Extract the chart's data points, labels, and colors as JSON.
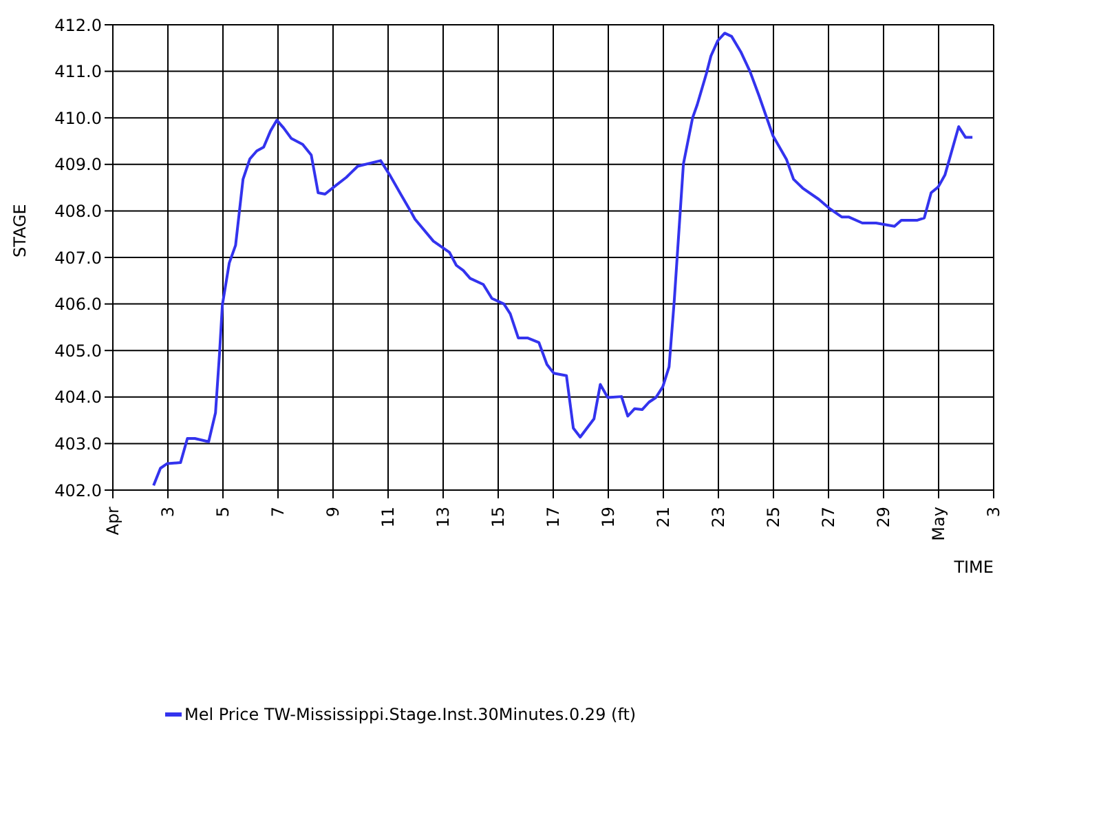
{
  "chart_data": {
    "type": "line",
    "xlabel": "TIME",
    "ylabel": "STAGE",
    "x": [
      "--04-02T11:30",
      "--04-02T17:30",
      "--04-02T23:30",
      "--04-03T11:00",
      "--04-03T17:00",
      "--04-03T23:30",
      "--04-04T11:30",
      "--04-04T17:30",
      "--04-04T21:00",
      "--04-04T23:30",
      "--04-05T05:30",
      "--04-05T11:00",
      "--04-05T17:30",
      "--04-05T23:30",
      "--04-06T05:30",
      "--04-06T11:30",
      "--04-06T17:30",
      "--04-06T23:00",
      "--04-07T05:00",
      "--04-07T11:30",
      "--04-07T21:30",
      "--04-08T05:00",
      "--04-08T11:00",
      "--04-08T17:00",
      "--04-09T01:30",
      "--04-09T11:30",
      "--04-09T21:30",
      "--04-10T17:30",
      "--04-11T01:30",
      "--04-11T11:30",
      "--04-11T19:30",
      "--04-11T23:30",
      "--04-12T15:30",
      "--04-13T05:30",
      "--04-13T11:30",
      "--04-13T17:30",
      "--04-13T23:30",
      "--04-14T11:00",
      "--04-14T18:30",
      "--04-15T05:00",
      "--04-15T10:30",
      "--04-15T17:30",
      "--04-16T01:30",
      "--04-16T11:30",
      "--04-16T18:30",
      "--04-17T00:30",
      "--04-17T11:30",
      "--04-17T17:30",
      "--04-17T23:30",
      "--04-18T11:30",
      "--04-18T17:00",
      "--04-18T23:30",
      "--04-19T11:30",
      "--04-19T17:00",
      "--04-19T23:00",
      "--04-20T05:30",
      "--04-20T11:30",
      "--04-20T17:30",
      "--04-20T23:30",
      "--04-21T05:00",
      "--04-21T09:30",
      "--04-21T17:30",
      "--04-22T01:30",
      "--04-22T05:30",
      "--04-22T13:30",
      "--04-22T17:30",
      "--04-22T23:30",
      "--04-23T05:30",
      "--04-23T11:30",
      "--04-23T19:30",
      "--04-24T03:30",
      "--04-24T11:30",
      "--04-24T23:30",
      "--04-25T11:30",
      "--04-25T17:30",
      "--04-26T01:30",
      "--04-26T15:30",
      "--04-27T01:30",
      "--04-27T11:30",
      "--04-27T17:30",
      "--04-28T05:30",
      "--04-28T17:30",
      "--04-29T09:30",
      "--04-29T15:30",
      "--04-30T05:30",
      "--04-30T11:30",
      "--04-30T17:30",
      "--04-30T23:30",
      "--05-01T05:30",
      "--05-01T17:30",
      "--05-01T23:30",
      "--05-02T05:30"
    ],
    "series": [
      {
        "name": "Mel Price TW-Mississippi.Stage.Inst.30Minutes.0.29 (ft)",
        "color": "#3333ee",
        "values": [
          402.1,
          402.47,
          402.57,
          402.59,
          403.11,
          403.11,
          403.04,
          403.66,
          404.93,
          405.98,
          406.88,
          407.26,
          408.68,
          409.12,
          409.29,
          409.37,
          409.72,
          409.95,
          409.78,
          409.56,
          409.43,
          409.2,
          408.39,
          408.36,
          408.53,
          408.72,
          408.96,
          409.08,
          408.77,
          408.34,
          408.0,
          407.82,
          407.35,
          407.11,
          406.83,
          406.72,
          406.55,
          406.42,
          406.12,
          406.0,
          405.79,
          405.27,
          405.27,
          405.17,
          404.7,
          404.51,
          404.46,
          403.33,
          403.14,
          403.53,
          404.27,
          403.99,
          404.01,
          403.59,
          403.75,
          403.73,
          403.89,
          403.99,
          404.22,
          404.65,
          406.07,
          409.01,
          410.0,
          410.28,
          410.95,
          411.33,
          411.66,
          411.82,
          411.75,
          411.42,
          411.0,
          410.47,
          409.62,
          409.1,
          408.68,
          408.49,
          408.25,
          408.04,
          407.87,
          407.87,
          407.74,
          407.74,
          407.67,
          407.8,
          407.8,
          407.85,
          408.39,
          408.51,
          408.77,
          409.81,
          409.58,
          409.58
        ]
      }
    ],
    "xlim": [
      "--04-01",
      "--05-03"
    ],
    "xticks": [
      {
        "value": "--04-01",
        "label": "Apr"
      },
      {
        "value": "--04-03",
        "label": "3"
      },
      {
        "value": "--04-05",
        "label": "5"
      },
      {
        "value": "--04-07",
        "label": "7"
      },
      {
        "value": "--04-09",
        "label": "9"
      },
      {
        "value": "--04-11",
        "label": "11"
      },
      {
        "value": "--04-13",
        "label": "13"
      },
      {
        "value": "--04-15",
        "label": "15"
      },
      {
        "value": "--04-17",
        "label": "17"
      },
      {
        "value": "--04-19",
        "label": "19"
      },
      {
        "value": "--04-21",
        "label": "21"
      },
      {
        "value": "--04-23",
        "label": "23"
      },
      {
        "value": "--04-25",
        "label": "25"
      },
      {
        "value": "--04-27",
        "label": "27"
      },
      {
        "value": "--04-29",
        "label": "29"
      },
      {
        "value": "--05-01",
        "label": "May"
      },
      {
        "value": "--05-03",
        "label": "3"
      }
    ],
    "ylim": [
      402,
      412
    ],
    "yticks": [
      {
        "value": 402,
        "label": "402.0"
      },
      {
        "value": 403,
        "label": "403.0"
      },
      {
        "value": 404,
        "label": "404.0"
      },
      {
        "value": 405,
        "label": "405.0"
      },
      {
        "value": 406,
        "label": "406.0"
      },
      {
        "value": 407,
        "label": "407.0"
      },
      {
        "value": 408,
        "label": "408.0"
      },
      {
        "value": 409,
        "label": "409.0"
      },
      {
        "value": 410,
        "label": "410.0"
      },
      {
        "value": 411,
        "label": "411.0"
      },
      {
        "value": 412,
        "label": "412.0"
      }
    ],
    "grid": true,
    "legend": "bottom left",
    "marker": "none",
    "line_style": "solid"
  }
}
